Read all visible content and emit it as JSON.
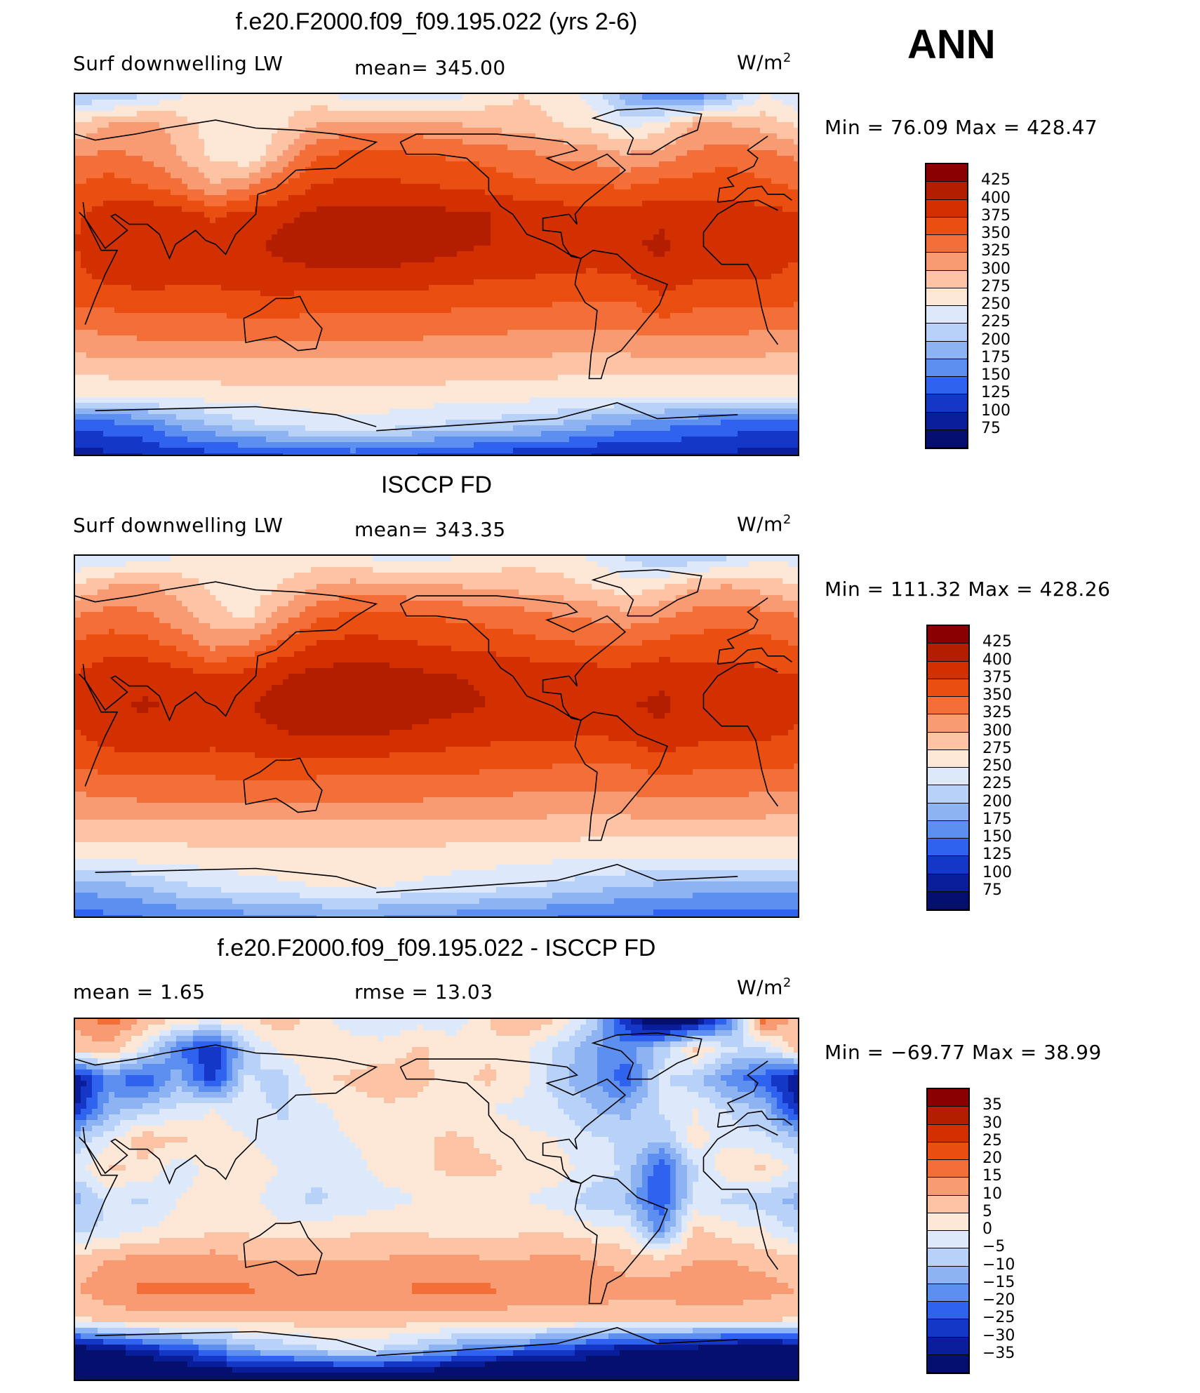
{
  "corner_label": "ANN",
  "panels": [
    {
      "title": "f.e20.F2000.f09_f09.195.022 (yrs 2-6)",
      "left_label": "Surf  downwelling LW",
      "center_label": "mean=  345.00",
      "unit_base": "W/m",
      "unit_exp": "2",
      "minmax": "Min  =    76.09  Max  =  428.47",
      "cbar_levels": [
        "425",
        "400",
        "375",
        "350",
        "325",
        "300",
        "275",
        "250",
        "225",
        "200",
        "175",
        "150",
        "125",
        "100",
        "75"
      ],
      "cbar_colors": [
        "#8a0000",
        "#b31e00",
        "#d33000",
        "#ea4e10",
        "#f46e38",
        "#f89a72",
        "#fcc4a4",
        "#fde7d6",
        "#dde9fb",
        "#b8d1f8",
        "#8db3f3",
        "#5c8ff0",
        "#2f62ee",
        "#1537c8",
        "#0a1e9c",
        "#040f6e"
      ],
      "map_kind": "abs",
      "map_values": [
        [
          200,
          200,
          220,
          245,
          260,
          270,
          270,
          255,
          240,
          230,
          230,
          240,
          260,
          275,
          265,
          240,
          180,
          150,
          150,
          190,
          250,
          230
        ],
        [
          275,
          300,
          310,
          290,
          260,
          250,
          270,
          300,
          310,
          310,
          310,
          300,
          295,
          285,
          275,
          265,
          240,
          260,
          300,
          300,
          290,
          270
        ],
        [
          320,
          330,
          320,
          300,
          270,
          250,
          300,
          345,
          355,
          355,
          350,
          345,
          340,
          330,
          320,
          315,
          300,
          310,
          330,
          340,
          330,
          320
        ],
        [
          350,
          360,
          350,
          330,
          300,
          320,
          350,
          375,
          380,
          380,
          375,
          370,
          365,
          355,
          350,
          350,
          345,
          355,
          360,
          365,
          355,
          345
        ],
        [
          370,
          390,
          395,
          385,
          370,
          380,
          395,
          405,
          410,
          410,
          410,
          405,
          400,
          395,
          390,
          385,
          385,
          395,
          385,
          385,
          385,
          375
        ],
        [
          375,
          395,
          400,
          395,
          390,
          395,
          405,
          415,
          420,
          418,
          415,
          408,
          400,
          395,
          390,
          388,
          395,
          405,
          390,
          390,
          392,
          380
        ],
        [
          370,
          385,
          390,
          385,
          385,
          390,
          395,
          395,
          395,
          395,
          390,
          385,
          380,
          378,
          375,
          373,
          375,
          395,
          380,
          380,
          378,
          370
        ],
        [
          350,
          355,
          360,
          360,
          360,
          365,
          365,
          360,
          360,
          360,
          360,
          355,
          355,
          352,
          350,
          345,
          345,
          365,
          355,
          355,
          352,
          350
        ],
        [
          320,
          325,
          330,
          330,
          330,
          330,
          330,
          330,
          330,
          330,
          330,
          325,
          325,
          322,
          320,
          320,
          320,
          330,
          325,
          325,
          322,
          320
        ],
        [
          290,
          290,
          295,
          295,
          295,
          295,
          295,
          295,
          295,
          295,
          295,
          295,
          295,
          295,
          290,
          290,
          290,
          290,
          290,
          290,
          290,
          290
        ],
        [
          250,
          255,
          260,
          260,
          262,
          265,
          265,
          265,
          265,
          265,
          265,
          262,
          260,
          260,
          255,
          255,
          255,
          250,
          250,
          252,
          255,
          250
        ],
        [
          130,
          140,
          150,
          180,
          200,
          220,
          230,
          240,
          245,
          240,
          230,
          220,
          215,
          210,
          200,
          180,
          170,
          160,
          150,
          140,
          135,
          130
        ],
        [
          90,
          95,
          100,
          110,
          115,
          120,
          125,
          130,
          135,
          130,
          125,
          120,
          115,
          110,
          105,
          100,
          95,
          95,
          95,
          95,
          90,
          90
        ]
      ]
    },
    {
      "title": "ISCCP FD",
      "left_label": "Surf  downwelling LW",
      "center_label": "mean=  343.35",
      "unit_base": "W/m",
      "unit_exp": "2",
      "minmax": "Min  =  111.32  Max  =  428.26",
      "cbar_levels": [
        "425",
        "400",
        "375",
        "350",
        "325",
        "300",
        "275",
        "250",
        "225",
        "200",
        "175",
        "150",
        "125",
        "100",
        "75"
      ],
      "cbar_colors": [
        "#8a0000",
        "#b31e00",
        "#d33000",
        "#ea4e10",
        "#f46e38",
        "#f89a72",
        "#fcc4a4",
        "#fde7d6",
        "#dde9fb",
        "#b8d1f8",
        "#8db3f3",
        "#5c8ff0",
        "#2f62ee",
        "#1537c8",
        "#0a1e9c",
        "#040f6e"
      ],
      "map_kind": "abs",
      "map_values": [
        [
          220,
          225,
          235,
          250,
          260,
          265,
          262,
          255,
          248,
          242,
          240,
          245,
          255,
          265,
          260,
          245,
          220,
          200,
          200,
          220,
          245,
          235
        ],
        [
          280,
          300,
          305,
          290,
          270,
          260,
          275,
          300,
          310,
          310,
          305,
          300,
          295,
          290,
          285,
          275,
          260,
          270,
          295,
          300,
          290,
          275
        ],
        [
          325,
          335,
          330,
          310,
          285,
          270,
          310,
          345,
          355,
          355,
          350,
          345,
          340,
          335,
          325,
          320,
          310,
          320,
          335,
          340,
          335,
          325
        ],
        [
          355,
          365,
          360,
          345,
          320,
          330,
          360,
          378,
          385,
          383,
          378,
          372,
          368,
          360,
          355,
          352,
          350,
          360,
          362,
          365,
          360,
          350
        ],
        [
          375,
          390,
          395,
          388,
          378,
          385,
          398,
          408,
          412,
          410,
          405,
          400,
          398,
          395,
          390,
          388,
          388,
          395,
          385,
          385,
          382,
          375
        ],
        [
          378,
          398,
          402,
          398,
          392,
          398,
          410,
          420,
          425,
          422,
          412,
          405,
          400,
          395,
          392,
          390,
          398,
          405,
          392,
          392,
          390,
          380
        ],
        [
          372,
          388,
          392,
          388,
          385,
          390,
          398,
          400,
          400,
          398,
          392,
          388,
          382,
          380,
          378,
          376,
          378,
          395,
          382,
          380,
          378,
          372
        ],
        [
          352,
          358,
          362,
          362,
          362,
          365,
          365,
          362,
          362,
          362,
          360,
          357,
          355,
          352,
          350,
          348,
          348,
          362,
          355,
          355,
          352,
          350
        ],
        [
          322,
          326,
          330,
          330,
          330,
          330,
          330,
          330,
          330,
          330,
          330,
          326,
          326,
          322,
          320,
          320,
          320,
          328,
          325,
          325,
          322,
          320
        ],
        [
          290,
          292,
          295,
          295,
          295,
          295,
          295,
          295,
          295,
          295,
          295,
          295,
          295,
          292,
          290,
          290,
          290,
          290,
          290,
          290,
          290,
          290
        ],
        [
          255,
          258,
          262,
          262,
          265,
          265,
          265,
          265,
          265,
          265,
          265,
          262,
          260,
          258,
          256,
          255,
          255,
          252,
          252,
          254,
          255,
          252
        ],
        [
          185,
          190,
          200,
          220,
          230,
          240,
          245,
          250,
          252,
          250,
          245,
          240,
          235,
          228,
          220,
          210,
          200,
          195,
          190,
          188,
          186,
          185
        ],
        [
          140,
          145,
          150,
          155,
          160,
          165,
          170,
          175,
          178,
          175,
          170,
          165,
          160,
          155,
          150,
          148,
          145,
          142,
          140,
          140,
          140,
          140
        ]
      ]
    },
    {
      "title": "f.e20.F2000.f09_f09.195.022 - ISCCP FD",
      "left_label": "mean  =       1.65",
      "center_label": "rmse  =      13.03",
      "unit_base": "W/m",
      "unit_exp": "2",
      "minmax": "Min  =  −69.77  Max  =    38.99",
      "cbar_levels": [
        "35",
        "30",
        "25",
        "20",
        "15",
        "10",
        "5",
        "0",
        "−5",
        "−10",
        "−15",
        "−20",
        "−25",
        "−30",
        "−35"
      ],
      "cbar_colors": [
        "#8a0000",
        "#b31e00",
        "#d33000",
        "#ea4e10",
        "#f46e38",
        "#f89a72",
        "#fcc4a4",
        "#fde7d6",
        "#dde9fb",
        "#b8d1f8",
        "#8db3f3",
        "#5c8ff0",
        "#2f62ee",
        "#1537c8",
        "#0a1e9c",
        "#040f6e"
      ],
      "map_kind": "diff",
      "map_values": [
        [
          12,
          18,
          10,
          4,
          2,
          5,
          8,
          2,
          -2,
          -4,
          -2,
          -3,
          5,
          10,
          5,
          -5,
          -30,
          -45,
          -40,
          -20,
          18,
          8
        ],
        [
          6,
          8,
          -2,
          -20,
          -30,
          -8,
          2,
          4,
          2,
          2,
          6,
          2,
          4,
          2,
          -6,
          -14,
          -18,
          -8,
          6,
          -4,
          -6,
          8
        ],
        [
          -35,
          -18,
          -25,
          -12,
          -28,
          -4,
          -8,
          4,
          6,
          8,
          6,
          4,
          6,
          2,
          -8,
          -14,
          -24,
          -4,
          -8,
          -18,
          -24,
          -35
        ],
        [
          -30,
          -12,
          -8,
          -4,
          0,
          -2,
          -6,
          -2,
          2,
          4,
          4,
          2,
          0,
          -2,
          -4,
          -10,
          -12,
          -4,
          0,
          -6,
          -10,
          -30
        ],
        [
          -8,
          -2,
          8,
          6,
          2,
          0,
          -4,
          -2,
          0,
          2,
          4,
          6,
          4,
          2,
          0,
          -4,
          -6,
          -10,
          2,
          -2,
          -4,
          -8
        ],
        [
          -2,
          6,
          4,
          -4,
          2,
          4,
          0,
          -4,
          -2,
          2,
          4,
          6,
          6,
          4,
          2,
          -2,
          -6,
          -25,
          -6,
          4,
          6,
          -2
        ],
        [
          -12,
          -4,
          -6,
          0,
          4,
          2,
          -4,
          -6,
          -4,
          -2,
          0,
          2,
          2,
          0,
          -2,
          -8,
          -10,
          -25,
          -4,
          -6,
          -8,
          -12
        ],
        [
          -6,
          -4,
          0,
          2,
          4,
          4,
          2,
          2,
          4,
          4,
          4,
          2,
          2,
          4,
          4,
          2,
          0,
          -18,
          6,
          2,
          0,
          -6
        ],
        [
          6,
          10,
          12,
          12,
          12,
          10,
          10,
          10,
          10,
          10,
          12,
          12,
          10,
          10,
          12,
          10,
          8,
          6,
          10,
          10,
          8,
          6
        ],
        [
          10,
          14,
          16,
          16,
          16,
          16,
          14,
          14,
          14,
          14,
          16,
          16,
          16,
          14,
          14,
          14,
          12,
          12,
          14,
          14,
          12,
          10
        ],
        [
          4,
          6,
          8,
          8,
          8,
          8,
          8,
          8,
          8,
          8,
          8,
          8,
          8,
          6,
          6,
          6,
          6,
          6,
          6,
          6,
          6,
          4
        ],
        [
          -40,
          -35,
          -30,
          -25,
          -20,
          -12,
          -10,
          -6,
          -4,
          -6,
          -10,
          -16,
          -20,
          -22,
          -25,
          -30,
          -34,
          -36,
          -38,
          -42,
          -45,
          -40
        ],
        [
          -55,
          -52,
          -50,
          -48,
          -45,
          -44,
          -46,
          -48,
          -44,
          -45,
          -45,
          -48,
          -52,
          -55,
          -50,
          -48,
          -50,
          -52,
          -50,
          -50,
          -52,
          -55
        ]
      ]
    }
  ]
}
